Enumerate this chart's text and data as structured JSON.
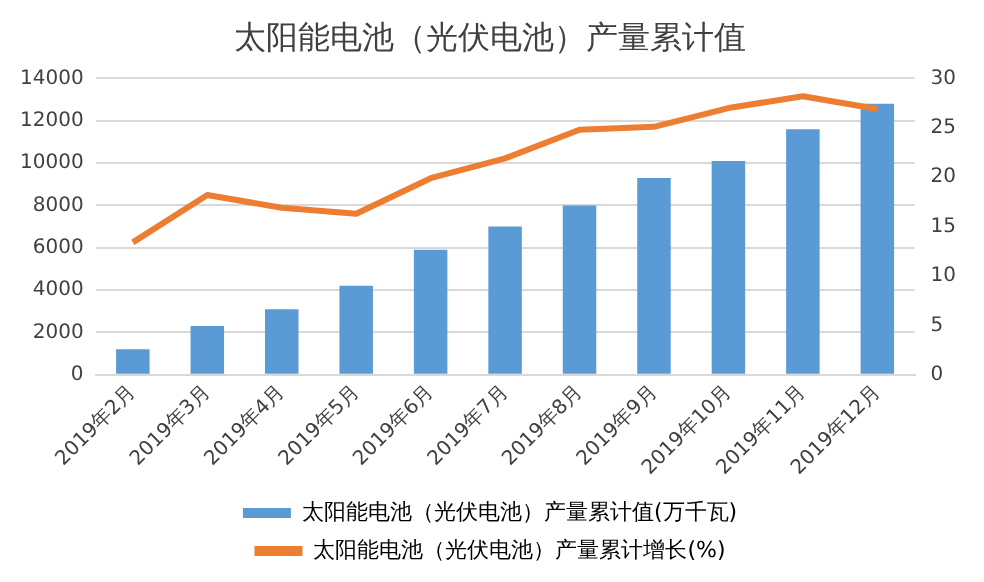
{
  "chart_data": {
    "type": "bar",
    "title": "太阳能电池（光伏电池）产量累计值",
    "categories": [
      "2019年2月",
      "2019年3月",
      "2019年4月",
      "2019年5月",
      "2019年6月",
      "2019年7月",
      "2019年8月",
      "2019年9月",
      "2019年10月",
      "2019年11月",
      "2019年12月"
    ],
    "series": [
      {
        "name": "太阳能电池（光伏电池）产量累计值(万千瓦)",
        "color": "#5b9bd5",
        "values": [
          1200,
          2300,
          3100,
          4200,
          5900,
          7000,
          8000,
          9300,
          10100,
          11600,
          12800
        ]
      },
      {
        "name": "太阳能电池（光伏电池）产量累计增长(%)",
        "type": "line",
        "axis": "y2",
        "color": "#ed7d31",
        "values": [
          13.4,
          18.2,
          16.9,
          16.3,
          19.9,
          21.9,
          24.8,
          25.1,
          27.0,
          28.2,
          26.9
        ]
      }
    ],
    "ylim": [
      0,
      14000
    ],
    "yticks": [
      0,
      2000,
      4000,
      6000,
      8000,
      10000,
      12000,
      14000
    ],
    "y2lim": [
      0,
      30
    ],
    "y2ticks": [
      0,
      5,
      10,
      15,
      20,
      25,
      30
    ],
    "grid": "y",
    "legend": "bottom",
    "marker": "none"
  }
}
